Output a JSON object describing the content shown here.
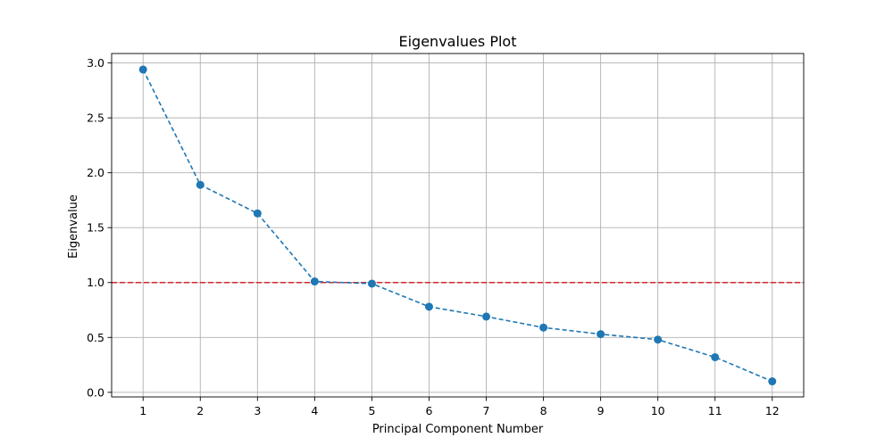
{
  "chart_data": {
    "type": "line",
    "title": "Eigenvalues Plot",
    "xlabel": "Principal Component Number",
    "ylabel": "Eigenvalue",
    "x": [
      1,
      2,
      3,
      4,
      5,
      6,
      7,
      8,
      9,
      10,
      11,
      12
    ],
    "series": [
      {
        "values": [
          2.94,
          1.89,
          1.63,
          1.01,
          0.99,
          0.78,
          0.69,
          0.59,
          0.53,
          0.48,
          0.32,
          0.1
        ],
        "color": "#1f77b4",
        "line_style": "dashed",
        "marker": "circle"
      }
    ],
    "reference_line": {
      "y": 1.0,
      "color": "#d62728",
      "line_style": "dashed"
    },
    "xlim": [
      0.45,
      12.55
    ],
    "ylim": [
      -0.042,
      3.086
    ],
    "x_ticks": [
      "1",
      "2",
      "3",
      "4",
      "5",
      "6",
      "7",
      "8",
      "9",
      "10",
      "11",
      "12"
    ],
    "y_ticks": [
      "0.0",
      "0.5",
      "1.0",
      "1.5",
      "2.0",
      "2.5",
      "3.0"
    ],
    "grid": true,
    "legend": "none"
  }
}
